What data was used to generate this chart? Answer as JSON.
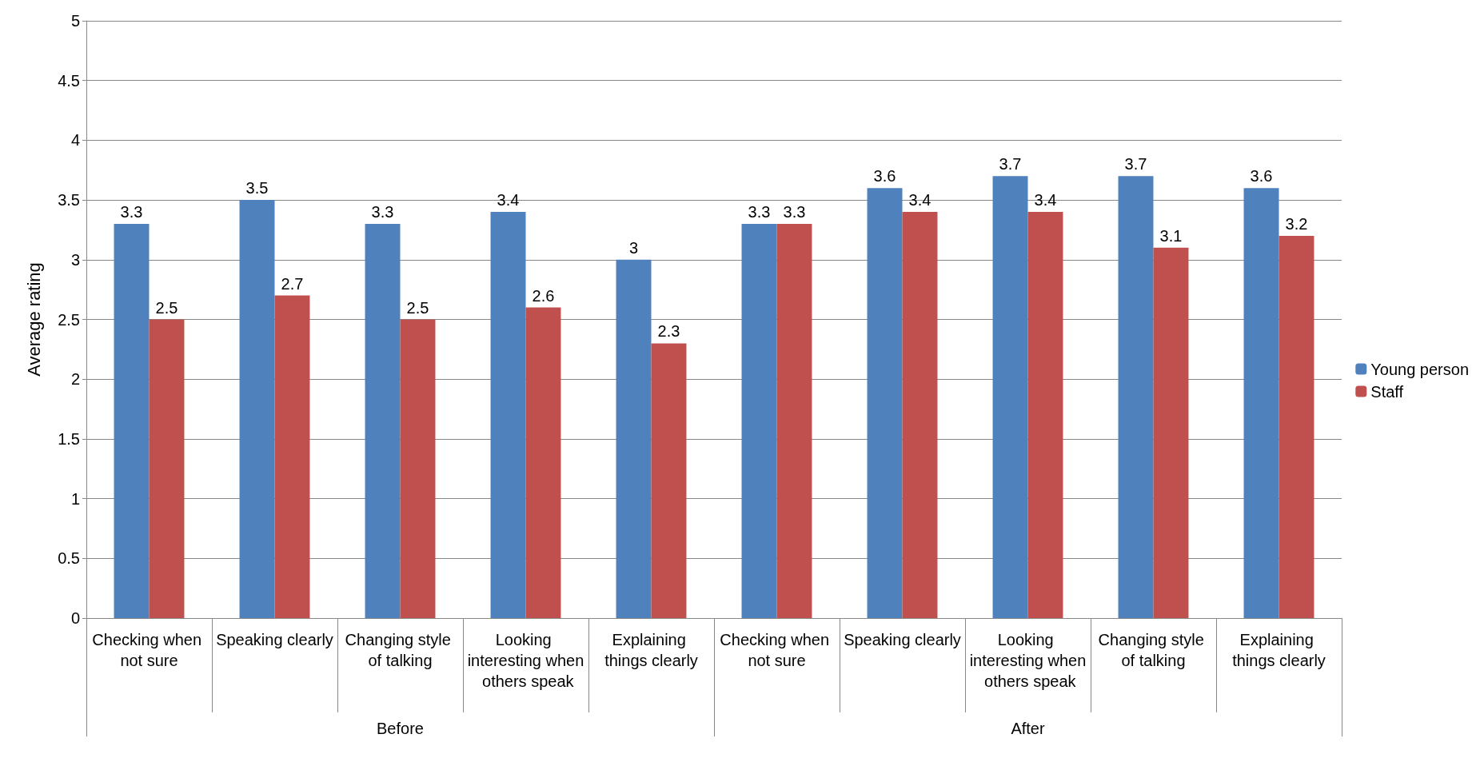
{
  "chart_data": {
    "type": "bar",
    "ylabel": "Average rating",
    "categories": [
      "Checking when not sure",
      "Speaking clearly",
      "Changing style of talking",
      "Looking interesting when others speak",
      "Explaining things clearly",
      "Checking when not sure",
      "Speaking clearly",
      "Looking interesting when others speak",
      "Changing style of talking",
      "Explaining things clearly"
    ],
    "series": [
      {
        "name": "Young person",
        "color": "#4f81bd",
        "values": [
          3.3,
          3.5,
          3.3,
          3.4,
          3,
          3.3,
          3.6,
          3.7,
          3.7,
          3.6
        ]
      },
      {
        "name": "Staff",
        "color": "#c0504d",
        "values": [
          2.5,
          2.7,
          2.5,
          2.6,
          2.3,
          3.3,
          3.4,
          3.4,
          3.1,
          3.2
        ]
      }
    ],
    "annotations": [
      "Before",
      "After"
    ],
    "ylim": [
      0,
      5
    ],
    "yticks": [
      0,
      0.5,
      1,
      1.5,
      2,
      2.5,
      3,
      3.5,
      4,
      4.5,
      5
    ],
    "grid": "y",
    "legend": "right",
    "data_labels": true
  }
}
